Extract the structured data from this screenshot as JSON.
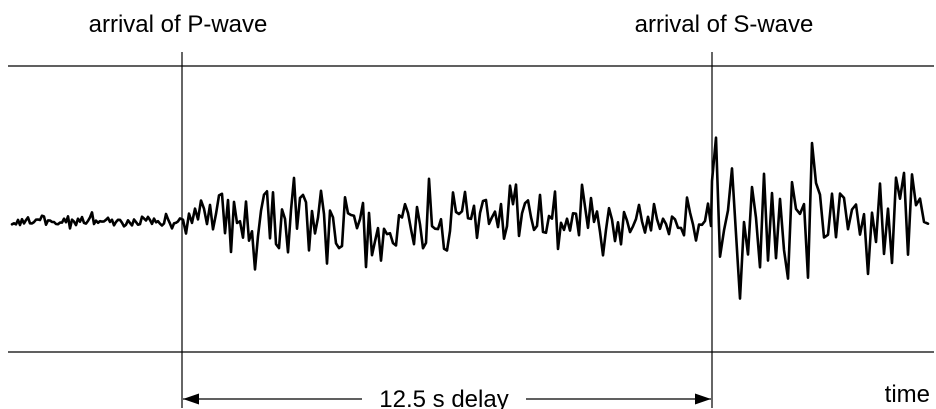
{
  "labels": {
    "p_wave": "arrival of P-wave",
    "s_wave": "arrival of S-wave",
    "delay": "12.5 s delay",
    "time": "time"
  },
  "colors": {
    "line": "#000000",
    "background": "#ffffff"
  }
}
